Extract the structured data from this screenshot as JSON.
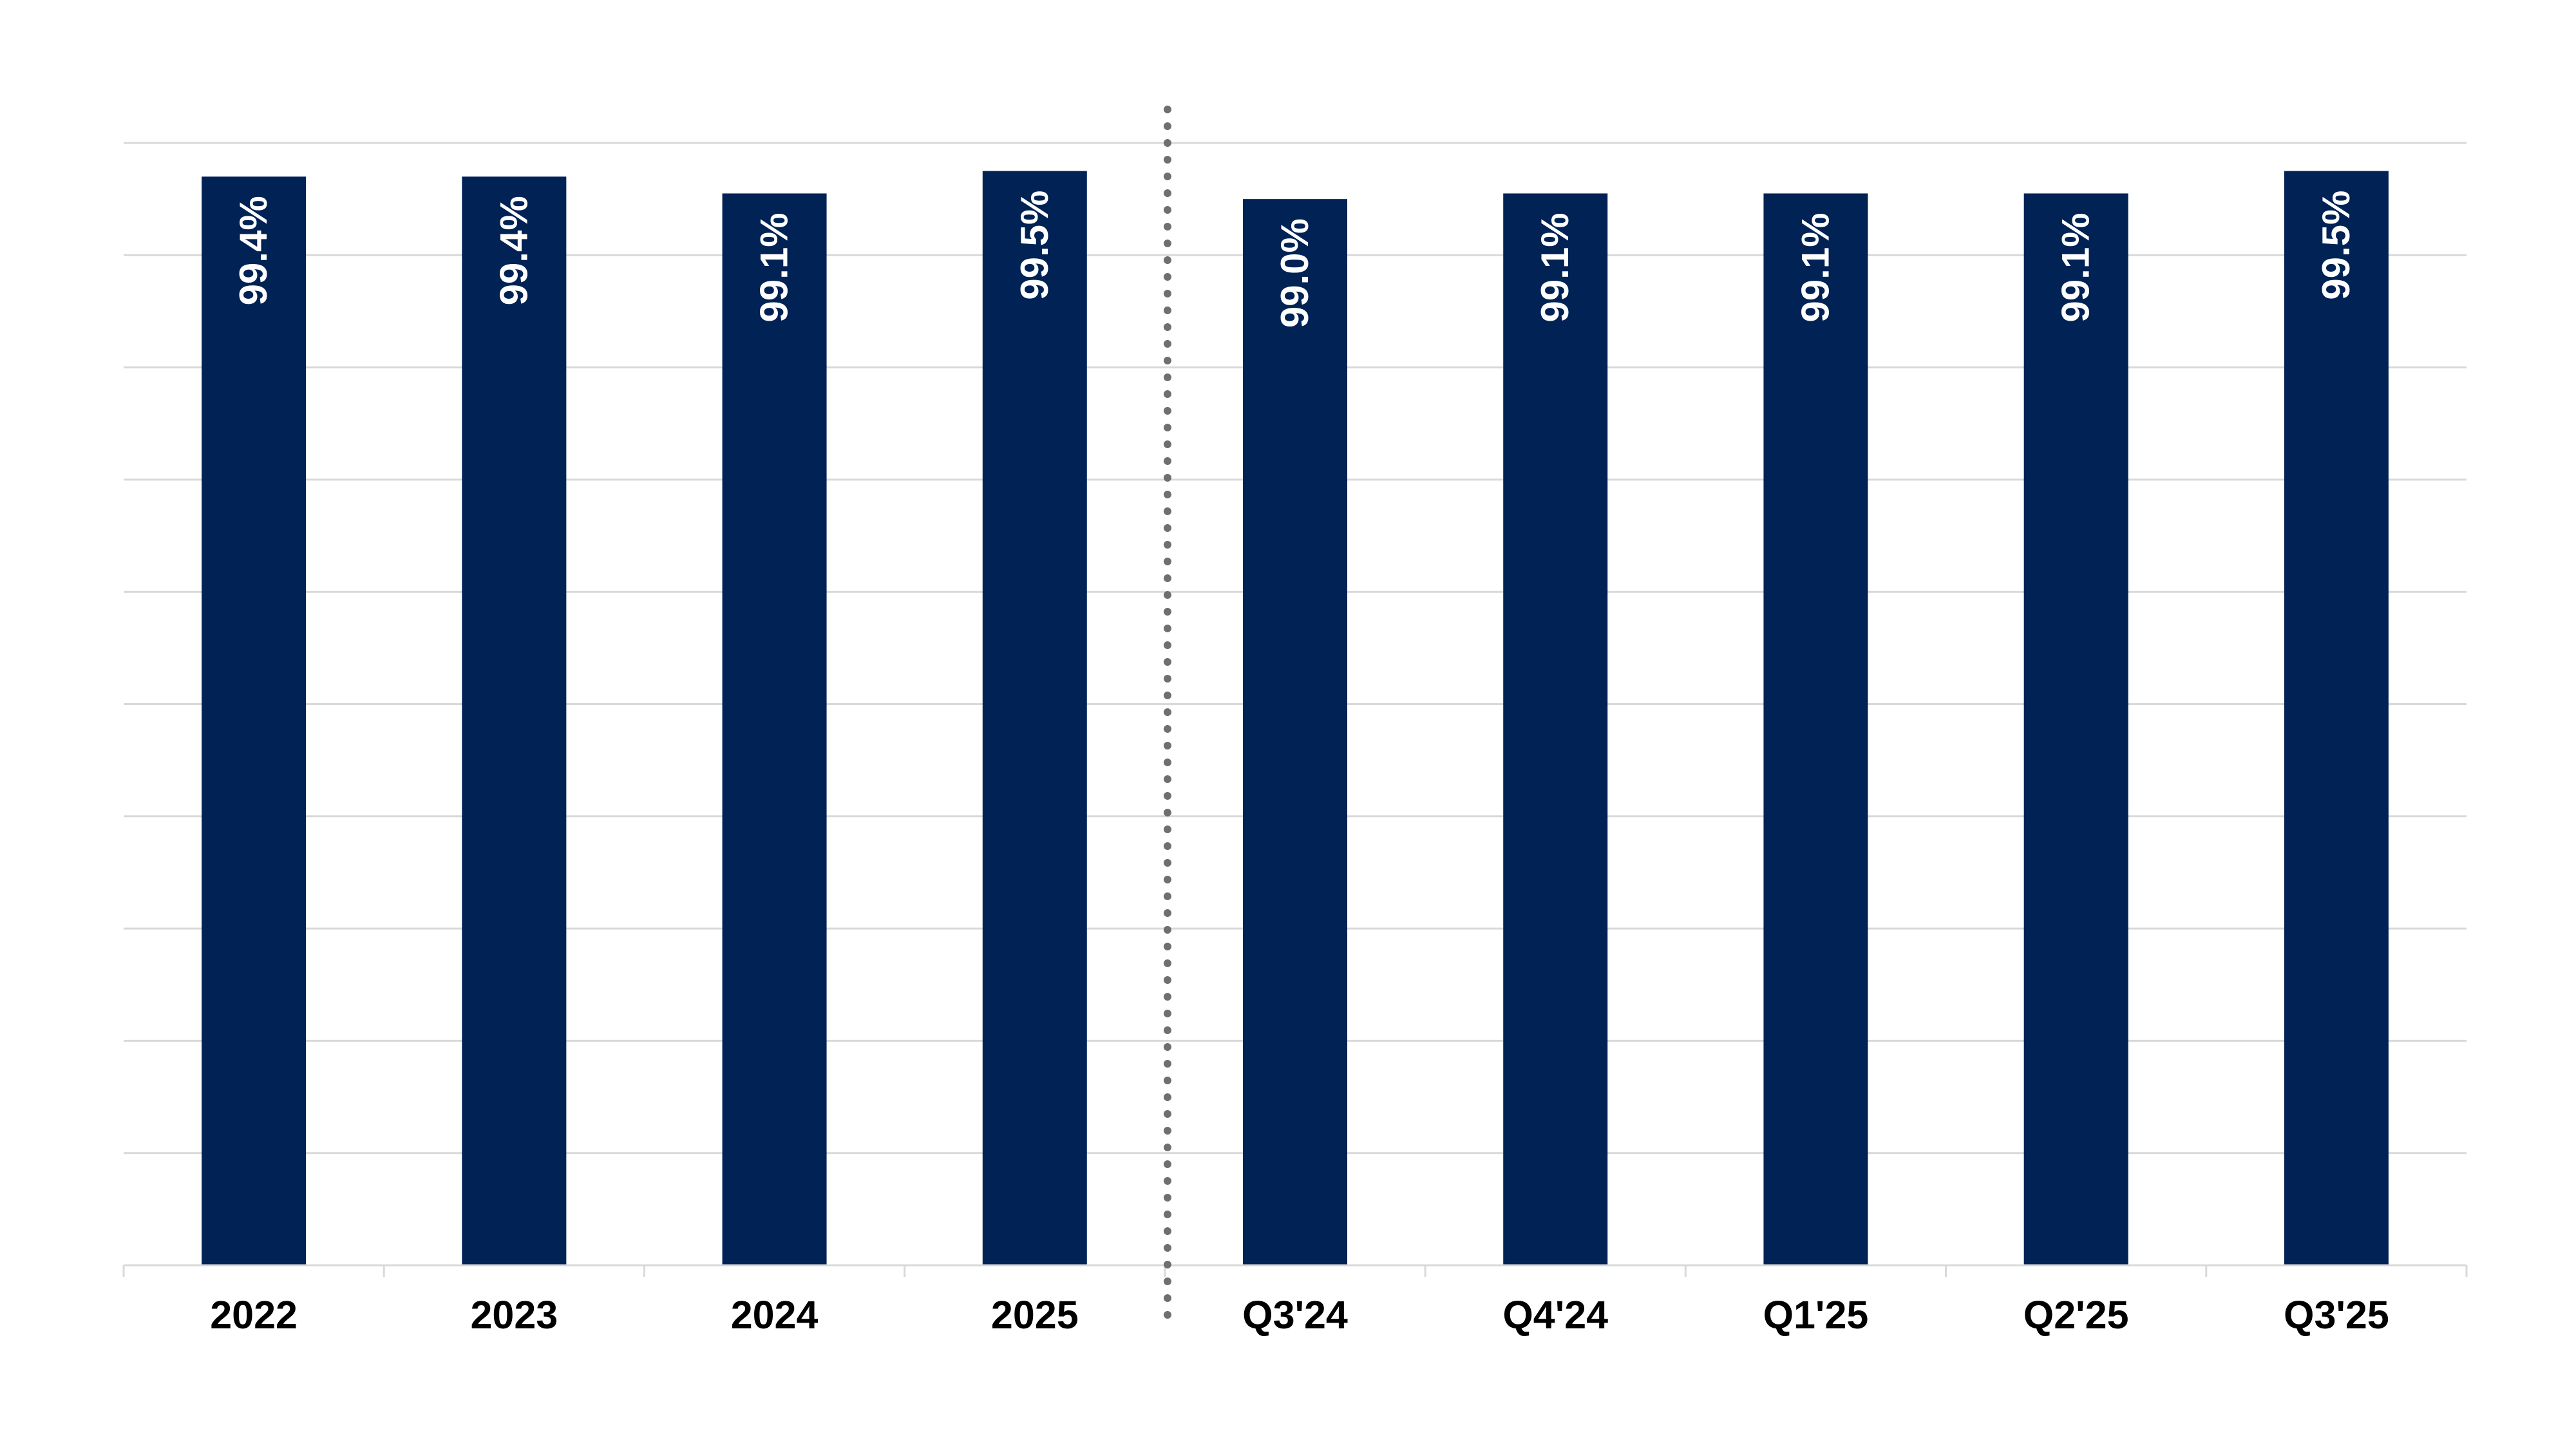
{
  "chart_data": {
    "type": "bar",
    "title": "",
    "xlabel": "",
    "ylabel": "",
    "categories": [
      "2022",
      "2023",
      "2024",
      "2025",
      "Q3'24",
      "Q4'24",
      "Q1'25",
      "Q2'25",
      "Q3'25"
    ],
    "values": [
      99.4,
      99.4,
      99.1,
      99.5,
      99.0,
      99.1,
      99.1,
      99.1,
      99.5
    ],
    "data_labels": [
      "99.4%",
      "99.4%",
      "99.1%",
      "99.5%",
      "99.0%",
      "99.1%",
      "99.1%",
      "99.1%",
      "99.5%"
    ],
    "ylim": [
      80,
      100
    ],
    "y_gridline_step": 2,
    "y_axis_labels_shown": false,
    "grid": true,
    "legend": "none",
    "separator": {
      "style": "dotted",
      "between_categories": [
        "2025",
        "Q3'24"
      ]
    },
    "colors": {
      "bar": "#002255",
      "bar_label": "#ffffff",
      "gridline": "#d9d9d9",
      "axis": "#d9d9d9",
      "separator": "#6f6f6f",
      "category_label": "#000000"
    }
  }
}
